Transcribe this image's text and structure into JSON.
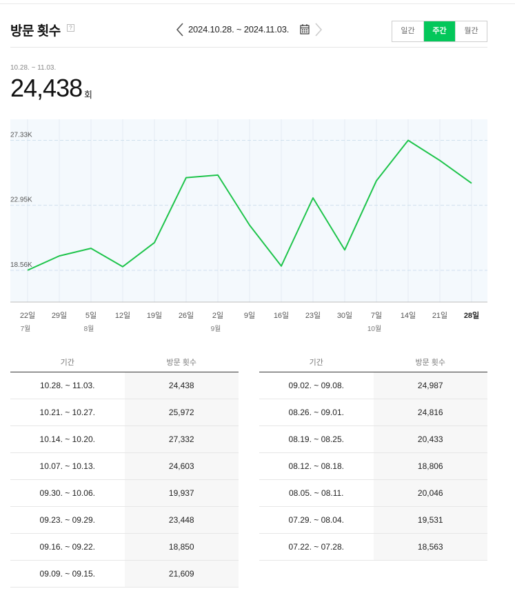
{
  "header": {
    "title": "방문 횟수",
    "help": "?",
    "date_range": "2024.10.28. ~ 2024.11.03.",
    "period_tabs": [
      {
        "label": "일간",
        "active": false
      },
      {
        "label": "주간",
        "active": true
      },
      {
        "label": "월간",
        "active": false
      }
    ]
  },
  "summary": {
    "range": "10.28. ~ 11.03.",
    "value": "24,438",
    "unit": "회"
  },
  "colors": {
    "accent": "#03c75a",
    "line": "#1ec44b",
    "plot_bg": "#f4f9fd"
  },
  "chart_data": {
    "type": "line",
    "y_ticks": [
      {
        "value": 18560,
        "label": "18.56K"
      },
      {
        "value": 22950,
        "label": "22.95K"
      },
      {
        "value": 27330,
        "label": "27.33K"
      }
    ],
    "ylim": [
      16420,
      28750
    ],
    "x": [
      {
        "label": "22일",
        "month": "7월",
        "bold": false
      },
      {
        "label": "29일",
        "month": "",
        "bold": false
      },
      {
        "label": "5일",
        "month": "8월",
        "bold": false
      },
      {
        "label": "12일",
        "month": "",
        "bold": false
      },
      {
        "label": "19일",
        "month": "",
        "bold": false
      },
      {
        "label": "26일",
        "month": "",
        "bold": false
      },
      {
        "label": "2일",
        "month": "9월",
        "bold": false
      },
      {
        "label": "9일",
        "month": "",
        "bold": false
      },
      {
        "label": "16일",
        "month": "",
        "bold": false
      },
      {
        "label": "23일",
        "month": "",
        "bold": false
      },
      {
        "label": "30일",
        "month": "",
        "bold": false
      },
      {
        "label": "7일",
        "month": "10월",
        "bold": false
      },
      {
        "label": "14일",
        "month": "",
        "bold": false
      },
      {
        "label": "21일",
        "month": "",
        "bold": false
      },
      {
        "label": "28일",
        "month": "",
        "bold": true
      }
    ],
    "series": [
      {
        "values": [
          18563,
          19531,
          20046,
          18806,
          20433,
          24816,
          24987,
          21609,
          18850,
          23448,
          19937,
          24603,
          27332,
          25972,
          24438
        ]
      }
    ]
  },
  "table": {
    "col_period": "기간",
    "col_count": "방문 횟수",
    "left_rows": [
      {
        "period": "10.28. ~ 11.03.",
        "count": "24,438"
      },
      {
        "period": "10.21. ~ 10.27.",
        "count": "25,972"
      },
      {
        "period": "10.14. ~ 10.20.",
        "count": "27,332"
      },
      {
        "period": "10.07. ~ 10.13.",
        "count": "24,603"
      },
      {
        "period": "09.30. ~ 10.06.",
        "count": "19,937"
      },
      {
        "period": "09.23. ~ 09.29.",
        "count": "23,448"
      },
      {
        "period": "09.16. ~ 09.22.",
        "count": "18,850"
      },
      {
        "period": "09.09. ~ 09.15.",
        "count": "21,609"
      }
    ],
    "right_rows": [
      {
        "period": "09.02. ~ 09.08.",
        "count": "24,987"
      },
      {
        "period": "08.26. ~ 09.01.",
        "count": "24,816"
      },
      {
        "period": "08.19. ~ 08.25.",
        "count": "20,433"
      },
      {
        "period": "08.12. ~ 08.18.",
        "count": "18,806"
      },
      {
        "period": "08.05. ~ 08.11.",
        "count": "20,046"
      },
      {
        "period": "07.29. ~ 08.04.",
        "count": "19,531"
      },
      {
        "period": "07.22. ~ 07.28.",
        "count": "18,563"
      }
    ]
  }
}
